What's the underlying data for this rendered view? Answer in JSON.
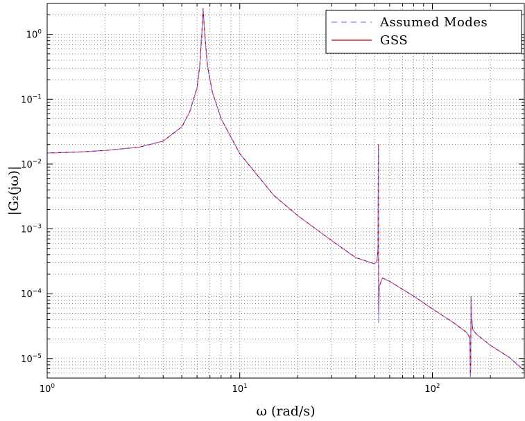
{
  "chart_data": {
    "type": "line",
    "xscale": "log",
    "yscale": "log",
    "xlim": [
      1,
      300
    ],
    "ylim": [
      5e-06,
      3
    ],
    "xlabel": "ω (rad/s)",
    "ylabel": "|G₂(jω)|",
    "grid": true,
    "legend_position": "top-right",
    "x_ticks": [
      {
        "value": 1,
        "base": "10",
        "exp": "0"
      },
      {
        "value": 10,
        "base": "10",
        "exp": "1"
      },
      {
        "value": 100,
        "base": "10",
        "exp": "2"
      }
    ],
    "y_ticks": [
      {
        "value": 1e-05,
        "base": "10",
        "exp": "−5"
      },
      {
        "value": 0.0001,
        "base": "10",
        "exp": "−4"
      },
      {
        "value": 0.001,
        "base": "10",
        "exp": "−3"
      },
      {
        "value": 0.01,
        "base": "10",
        "exp": "−2"
      },
      {
        "value": 0.1,
        "base": "10",
        "exp": "−1"
      },
      {
        "value": 1,
        "base": "10",
        "exp": "0"
      }
    ],
    "series": [
      {
        "name": "Assumed Modes",
        "color": "#8080ff",
        "dash": true,
        "x": [
          1,
          1.5,
          2,
          3,
          4,
          5,
          5.5,
          6,
          6.2,
          6.35,
          6.45,
          6.6,
          6.8,
          7.2,
          8,
          10,
          15,
          20,
          30,
          40,
          50,
          51.5,
          52.2,
          52.5,
          52.6,
          53,
          55,
          60,
          80,
          100,
          130,
          150,
          155,
          156.5,
          157,
          157.5,
          158,
          158.8,
          159.5,
          162,
          170,
          200,
          250,
          300
        ],
        "y": [
          0.0148,
          0.0154,
          0.0162,
          0.0182,
          0.0226,
          0.0375,
          0.064,
          0.15,
          0.33,
          1.0,
          2.5,
          0.9,
          0.32,
          0.13,
          0.05,
          0.0145,
          0.0033,
          0.0016,
          0.00066,
          0.00036,
          0.00029,
          0.00031,
          0.0005,
          0.019,
          3.5e-05,
          0.00013,
          0.000175,
          0.000155,
          9.15e-05,
          5.85e-05,
          3.5e-05,
          2.55e-05,
          2.2e-05,
          1.75e-05,
          1.2e-05,
          5e-06,
          6.5e-06,
          8.8e-05,
          4.5e-05,
          2.8e-05,
          2.35e-05,
          1.6e-05,
          1.05e-05,
          6.5e-06
        ]
      },
      {
        "name": "GSS",
        "color": "#cc0000",
        "dash": false,
        "x": [
          1,
          1.5,
          2,
          3,
          4,
          5,
          5.5,
          6,
          6.2,
          6.35,
          6.45,
          6.6,
          6.8,
          7.2,
          8,
          10,
          15,
          20,
          30,
          40,
          50,
          51.5,
          52.2,
          52.5,
          52.6,
          53,
          55,
          60,
          80,
          100,
          130,
          150,
          155,
          156.5,
          157,
          157.5,
          158,
          158.8,
          159.5,
          162,
          170,
          200,
          250,
          300
        ],
        "y": [
          0.0148,
          0.0154,
          0.0162,
          0.0182,
          0.0226,
          0.0375,
          0.064,
          0.15,
          0.33,
          1.0,
          2.5,
          0.9,
          0.32,
          0.13,
          0.05,
          0.0145,
          0.0033,
          0.0016,
          0.00066,
          0.00036,
          0.00029,
          0.00031,
          0.0005,
          0.02,
          4.8e-05,
          0.00013,
          0.000175,
          0.000155,
          9.15e-05,
          5.85e-05,
          3.5e-05,
          2.55e-05,
          2.2e-05,
          1.75e-05,
          1.2e-05,
          5.3e-06,
          7e-06,
          9e-05,
          4.5e-05,
          2.8e-05,
          2.35e-05,
          1.6e-05,
          1.05e-05,
          6.5e-06
        ]
      }
    ]
  }
}
